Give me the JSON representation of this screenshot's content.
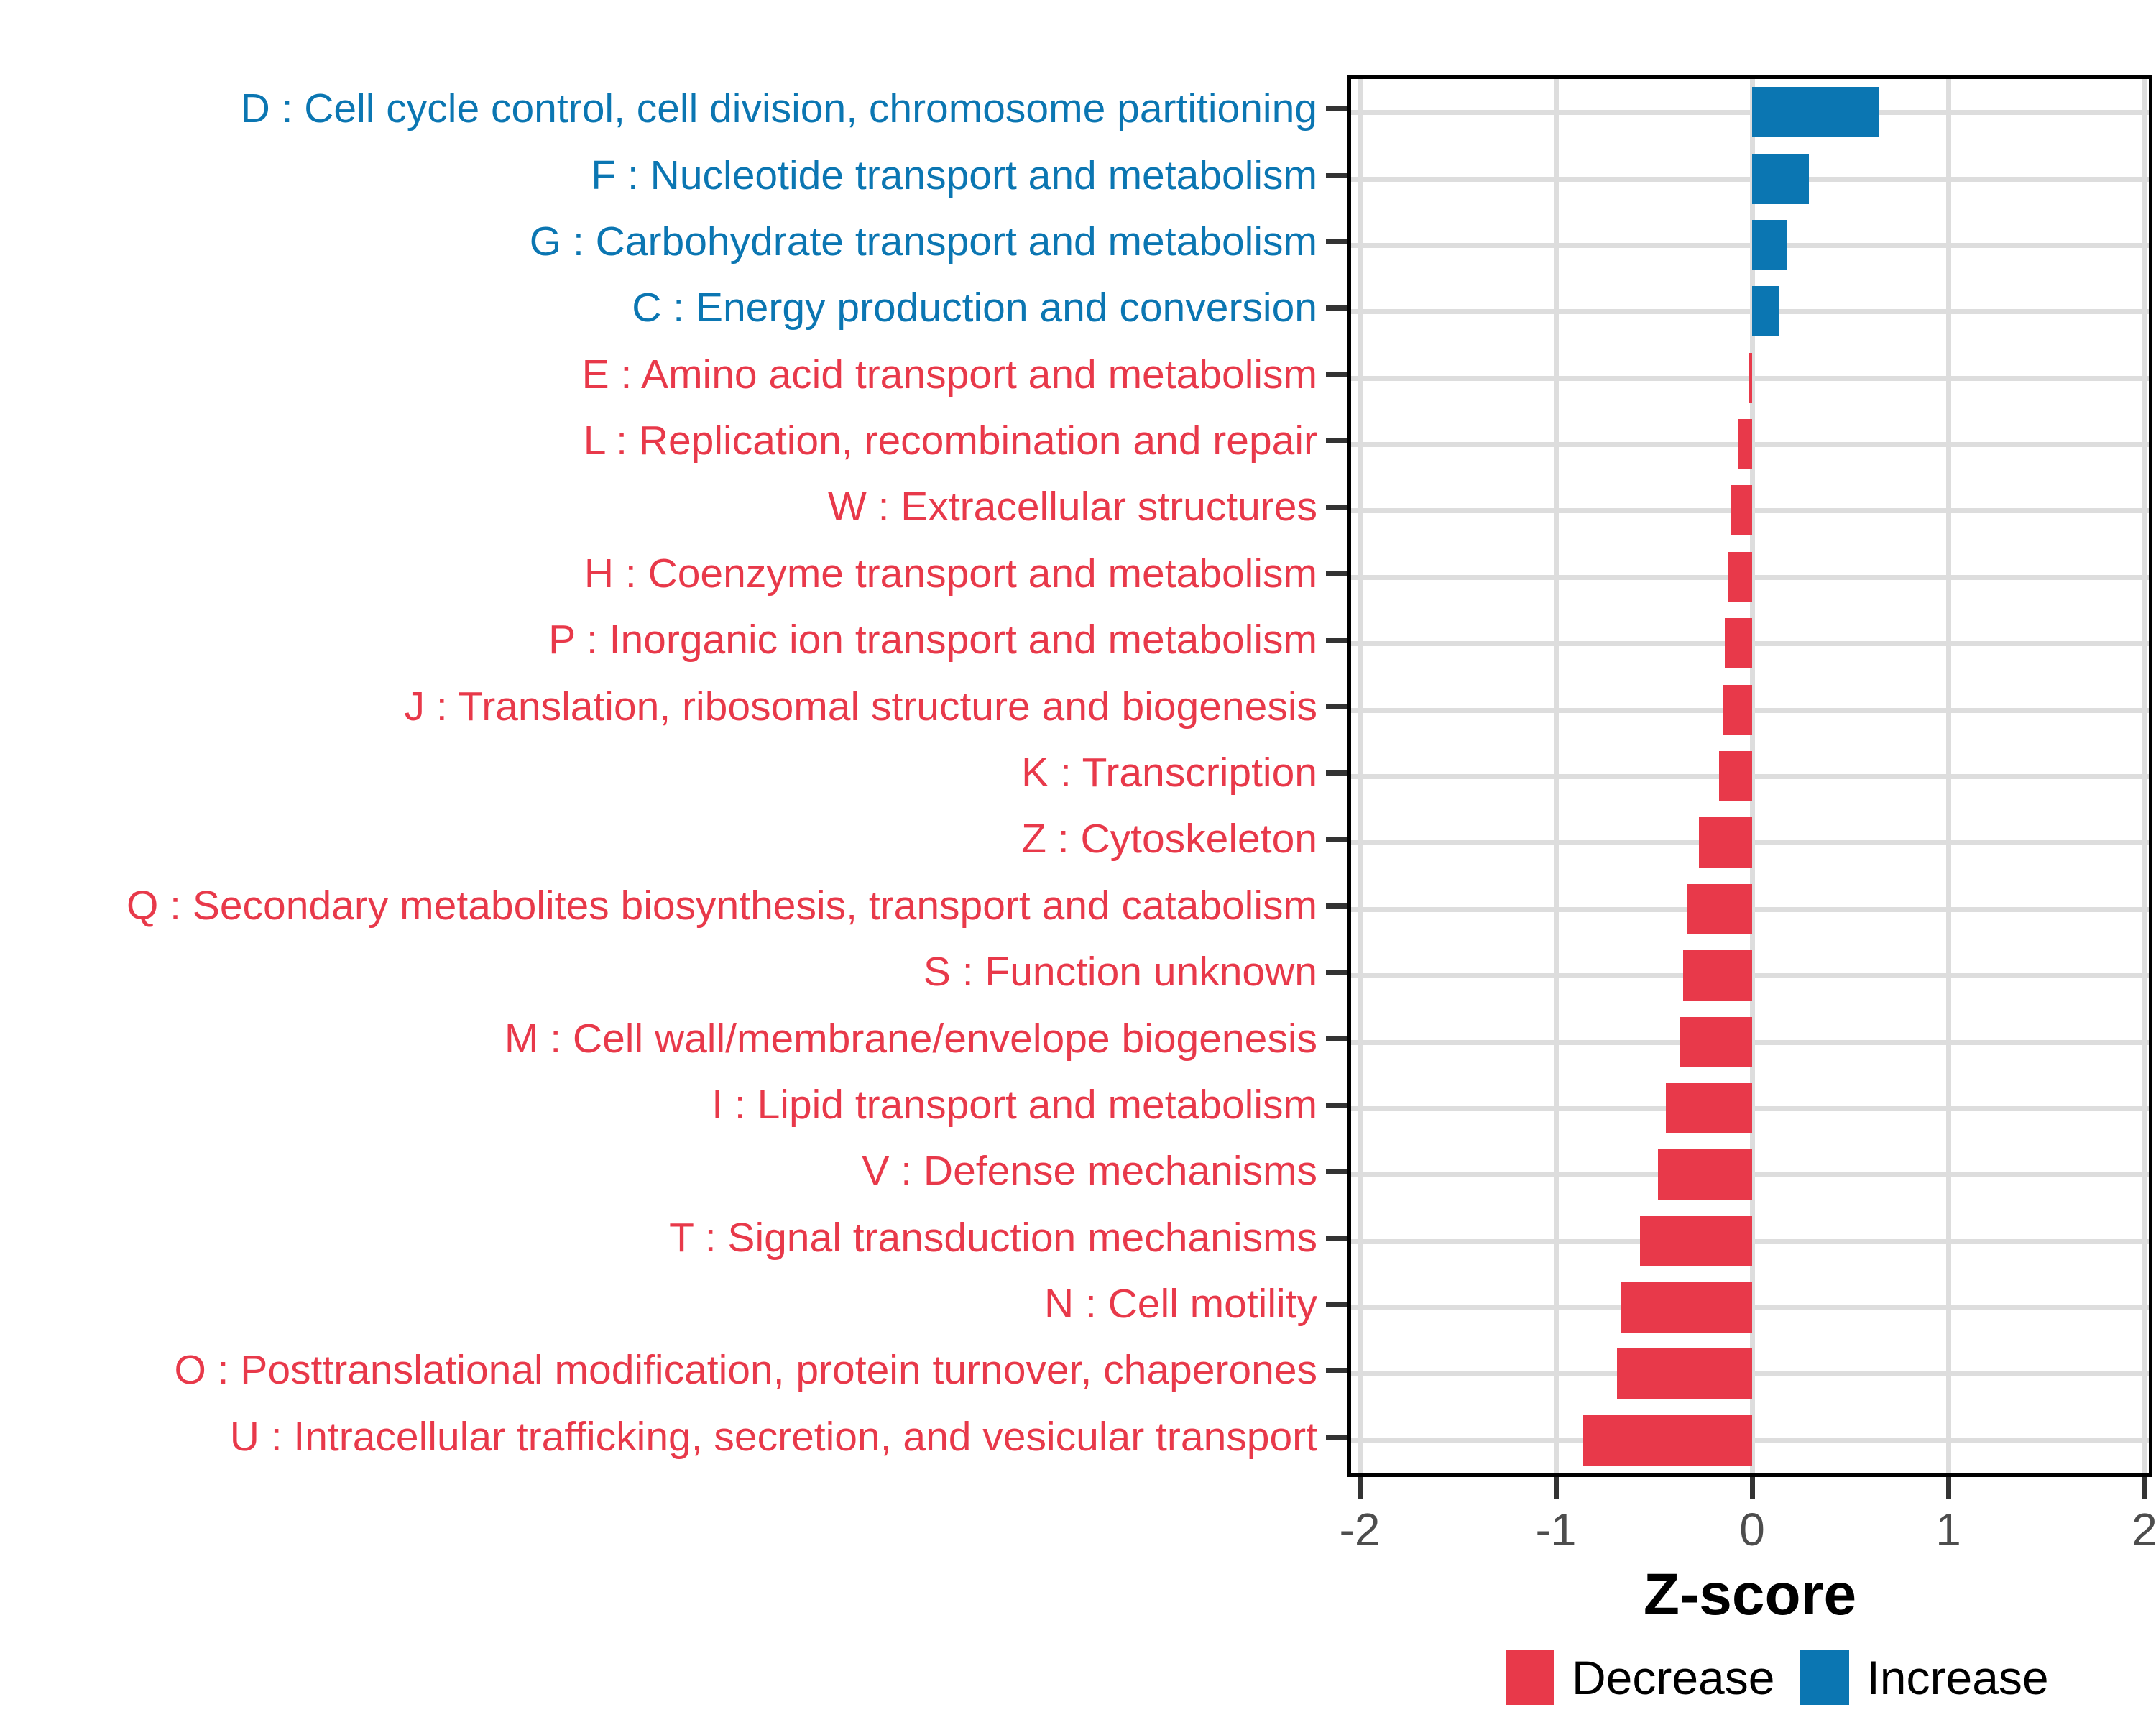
{
  "chart_data": {
    "type": "bar",
    "orientation": "horizontal",
    "xlabel": "Z-score",
    "xlim": [
      -2.05,
      2.05
    ],
    "x_ticks": [
      "-2",
      "-1",
      "0",
      "1",
      "2"
    ],
    "x_tick_values": [
      -2,
      -1,
      0,
      1,
      2
    ],
    "grid": "major-only",
    "categories": [
      {
        "code": "D",
        "label": "D : Cell cycle control, cell division, chromosome partitioning",
        "value": 0.65,
        "direction": "Increase"
      },
      {
        "code": "F",
        "label": "F : Nucleotide transport and metabolism",
        "value": 0.29,
        "direction": "Increase"
      },
      {
        "code": "G",
        "label": "G : Carbohydrate transport and metabolism",
        "value": 0.18,
        "direction": "Increase"
      },
      {
        "code": "C",
        "label": "C : Energy production and conversion",
        "value": 0.14,
        "direction": "Increase"
      },
      {
        "code": "E",
        "label": "E : Amino acid transport and metabolism",
        "value": -0.015,
        "direction": "Decrease"
      },
      {
        "code": "L",
        "label": "L : Replication, recombination and repair",
        "value": -0.07,
        "direction": "Decrease"
      },
      {
        "code": "W",
        "label": "W : Extracellular structures",
        "value": -0.11,
        "direction": "Decrease"
      },
      {
        "code": "H",
        "label": "H : Coenzyme transport and metabolism",
        "value": -0.12,
        "direction": "Decrease"
      },
      {
        "code": "P",
        "label": "P : Inorganic ion transport and metabolism",
        "value": -0.14,
        "direction": "Decrease"
      },
      {
        "code": "J",
        "label": "J : Translation, ribosomal structure and biogenesis",
        "value": -0.15,
        "direction": "Decrease"
      },
      {
        "code": "K",
        "label": "K : Transcription",
        "value": -0.17,
        "direction": "Decrease"
      },
      {
        "code": "Z",
        "label": "Z : Cytoskeleton",
        "value": -0.27,
        "direction": "Decrease"
      },
      {
        "code": "Q",
        "label": "Q : Secondary metabolites biosynthesis, transport and catabolism",
        "value": -0.33,
        "direction": "Decrease"
      },
      {
        "code": "S",
        "label": "S : Function unknown",
        "value": -0.35,
        "direction": "Decrease"
      },
      {
        "code": "M",
        "label": "M : Cell wall/membrane/envelope biogenesis",
        "value": -0.37,
        "direction": "Decrease"
      },
      {
        "code": "I",
        "label": "I : Lipid transport and metabolism",
        "value": -0.44,
        "direction": "Decrease"
      },
      {
        "code": "V",
        "label": "V : Defense mechanisms",
        "value": -0.48,
        "direction": "Decrease"
      },
      {
        "code": "T",
        "label": "T : Signal transduction mechanisms",
        "value": -0.57,
        "direction": "Decrease"
      },
      {
        "code": "N",
        "label": "N : Cell motility",
        "value": -0.67,
        "direction": "Decrease"
      },
      {
        "code": "O",
        "label": "O : Posttranslational modification, protein turnover, chaperones",
        "value": -0.69,
        "direction": "Decrease"
      },
      {
        "code": "U",
        "label": "U : Intracellular trafficking, secretion, and vesicular transport",
        "value": -0.86,
        "direction": "Decrease"
      }
    ],
    "legend": {
      "position": "bottom-right",
      "items": [
        {
          "label": "Decrease",
          "color": "#E8394A"
        },
        {
          "label": "Increase",
          "color": "#0B76B2"
        }
      ]
    },
    "colors": {
      "increase": "#0B76B2",
      "decrease": "#E8394A",
      "gridline": "#DDDDDD",
      "panel_border": "#000000",
      "axis_text": "#4D4D4D",
      "tick_mark": "#333333"
    }
  }
}
